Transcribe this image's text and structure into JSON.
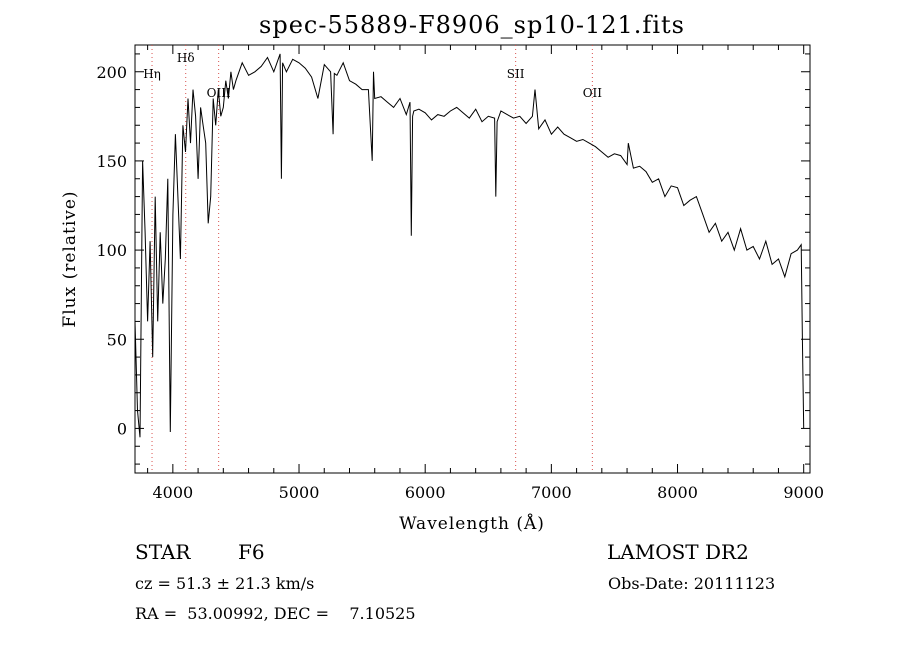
{
  "chart_data": {
    "type": "line",
    "title": "spec-55889-F8906_sp10-121.fits",
    "xlabel": "Wavelength (Å)",
    "ylabel": "Flux (relative)",
    "xlim": [
      3700,
      9050
    ],
    "ylim": [
      -25,
      215
    ],
    "xticks": [
      4000,
      5000,
      6000,
      7000,
      8000,
      9000
    ],
    "yticks": [
      0,
      50,
      100,
      150,
      200
    ],
    "grid": false,
    "line_color": "#000000",
    "marker_color": "#d9534f",
    "series": [
      {
        "x": [
          3700,
          3720,
          3740,
          3760,
          3780,
          3800,
          3820,
          3840,
          3860,
          3880,
          3900,
          3920,
          3940,
          3960,
          3980,
          4000,
          4020,
          4040,
          4060,
          4080,
          4100,
          4120,
          4140,
          4160,
          4180,
          4200,
          4220,
          4240,
          4260,
          4280,
          4300,
          4320,
          4340,
          4360,
          4380,
          4400,
          4420,
          4440,
          4460,
          4480,
          4500,
          4550,
          4600,
          4650,
          4700,
          4750,
          4800,
          4850,
          4860,
          4870,
          4900,
          4950,
          5000,
          5050,
          5100,
          5150,
          5200,
          5250,
          5270,
          5280,
          5300,
          5350,
          5400,
          5450,
          5500,
          5550,
          5580,
          5590,
          5600,
          5650,
          5700,
          5750,
          5800,
          5850,
          5880,
          5890,
          5900,
          5910,
          5950,
          6000,
          6050,
          6100,
          6150,
          6200,
          6250,
          6300,
          6350,
          6400,
          6450,
          6500,
          6550,
          6560,
          6570,
          6600,
          6650,
          6700,
          6750,
          6800,
          6850,
          6870,
          6900,
          6950,
          7000,
          7050,
          7100,
          7150,
          7200,
          7250,
          7300,
          7350,
          7400,
          7450,
          7500,
          7550,
          7600,
          7610,
          7650,
          7700,
          7750,
          7800,
          7850,
          7900,
          7950,
          8000,
          8050,
          8100,
          8150,
          8200,
          8250,
          8300,
          8350,
          8400,
          8450,
          8500,
          8550,
          8600,
          8650,
          8700,
          8750,
          8800,
          8850,
          8900,
          8950,
          8980,
          8990,
          9000
        ],
        "y": [
          60,
          10,
          -5,
          150,
          110,
          60,
          105,
          40,
          130,
          60,
          110,
          70,
          95,
          140,
          -2,
          120,
          165,
          130,
          95,
          170,
          155,
          185,
          160,
          190,
          175,
          140,
          180,
          170,
          160,
          115,
          130,
          185,
          170,
          190,
          175,
          180,
          195,
          185,
          200,
          190,
          195,
          205,
          198,
          200,
          203,
          208,
          200,
          210,
          140,
          205,
          200,
          207,
          205,
          202,
          197,
          185,
          204,
          200,
          165,
          199,
          198,
          205,
          195,
          193,
          190,
          190,
          150,
          200,
          185,
          186,
          183,
          180,
          185,
          176,
          183,
          108,
          175,
          178,
          179,
          177,
          173,
          176,
          175,
          178,
          180,
          177,
          174,
          179,
          172,
          175,
          174,
          130,
          172,
          178,
          176,
          174,
          175,
          171,
          175,
          190,
          168,
          173,
          165,
          169,
          165,
          163,
          161,
          162,
          160,
          158,
          155,
          152,
          154,
          153,
          148,
          160,
          146,
          147,
          144,
          138,
          140,
          130,
          136,
          135,
          125,
          128,
          130,
          120,
          110,
          115,
          105,
          110,
          100,
          112,
          100,
          102,
          95,
          105,
          92,
          95,
          85,
          98,
          100,
          103,
          50,
          0
        ]
      }
    ],
    "line_markers": [
      {
        "label": "Hη",
        "x": 3835
      },
      {
        "label": "Hδ",
        "x": 4102
      },
      {
        "label": "OIII",
        "x": 4363
      },
      {
        "label": "SII",
        "x": 6717
      },
      {
        "label": "OII",
        "x": 7325
      }
    ]
  },
  "footer": {
    "object_class": "STAR",
    "subclass": "F6",
    "survey": "LAMOST DR2",
    "redshift": "cz = 51.3 ± 21.3 km/s",
    "obs_date": "Obs-Date: 20111123",
    "coords": "RA =  53.00992, DEC =    7.10525"
  }
}
